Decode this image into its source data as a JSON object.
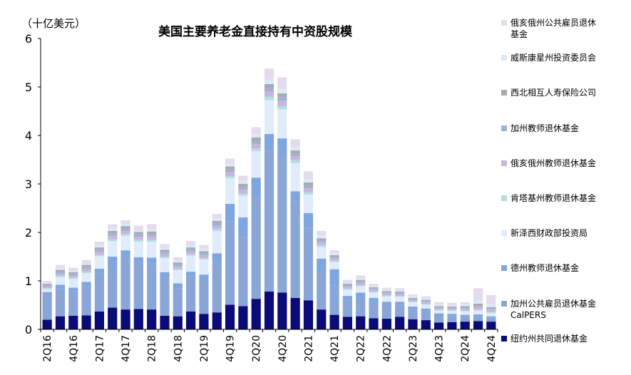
{
  "unit_label": "（十亿美元）",
  "chart_data": {
    "type": "bar",
    "stacked": true,
    "title": "美国主要养老金直接持有中资股规模",
    "ylabel": "（十亿美元）",
    "ylim": [
      0,
      6
    ],
    "yticks": [
      0,
      1,
      2,
      3,
      4,
      5,
      6
    ],
    "grid": false,
    "legend_position": "right",
    "categories": [
      "2Q16",
      "3Q16",
      "4Q16",
      "1Q17",
      "2Q17",
      "3Q17",
      "4Q17",
      "1Q18",
      "2Q18",
      "3Q18",
      "4Q18",
      "1Q19",
      "2Q19",
      "3Q19",
      "4Q19",
      "1Q20",
      "2Q20",
      "3Q20",
      "4Q20",
      "1Q21",
      "2Q21",
      "3Q21",
      "4Q21",
      "1Q22",
      "2Q22",
      "3Q22",
      "4Q22",
      "1Q23",
      "2Q23",
      "3Q23",
      "4Q23",
      "1Q24",
      "2Q24",
      "3Q24",
      "4Q24"
    ],
    "tick_labels": [
      "2Q16",
      "",
      "4Q16",
      "",
      "2Q17",
      "",
      "4Q17",
      "",
      "2Q18",
      "",
      "4Q18",
      "",
      "2Q19",
      "",
      "4Q19",
      "",
      "2Q20",
      "",
      "4Q20",
      "",
      "2Q21",
      "",
      "4Q21",
      "",
      "2Q22",
      "",
      "4Q22",
      "",
      "2Q23",
      "",
      "4Q23",
      "",
      "2Q24",
      "",
      "4Q24"
    ],
    "series": [
      {
        "name": "纽约州共同退休基金",
        "color": "#0a0a78",
        "values": [
          0.2,
          0.27,
          0.28,
          0.29,
          0.37,
          0.45,
          0.41,
          0.42,
          0.41,
          0.28,
          0.27,
          0.37,
          0.32,
          0.35,
          0.51,
          0.48,
          0.63,
          0.78,
          0.76,
          0.65,
          0.6,
          0.41,
          0.3,
          0.26,
          0.27,
          0.23,
          0.22,
          0.26,
          0.21,
          0.19,
          0.14,
          0.15,
          0.16,
          0.17,
          0.16
        ]
      },
      {
        "name": "加州公共雇员退休基金\nCalPERS",
        "color": "#8aa6d6",
        "values": [
          0.52,
          0.57,
          0.51,
          0.62,
          0.78,
          0.85,
          1.12,
          0.97,
          0.97,
          0.78,
          0.58,
          0.72,
          0.71,
          1.07,
          1.72,
          1.43,
          2.1,
          2.9,
          2.8,
          2.0,
          1.5,
          0.78,
          0.6,
          0.33,
          0.37,
          0.33,
          0.28,
          0.25,
          0.2,
          0.18,
          0.14,
          0.12,
          0.1,
          0.1,
          0.08
        ]
      },
      {
        "name": "德州教师退休基金",
        "color": "#7fa6de",
        "values": [
          0.05,
          0.08,
          0.07,
          0.07,
          0.1,
          0.2,
          0.1,
          0.1,
          0.1,
          0.12,
          0.1,
          0.1,
          0.1,
          0.15,
          0.36,
          0.4,
          0.4,
          0.35,
          0.38,
          0.2,
          0.3,
          0.27,
          0.34,
          0.1,
          0.12,
          0.09,
          0.07,
          0.06,
          0.06,
          0.06,
          0.05,
          0.05,
          0.04,
          0.04,
          0.03
        ]
      },
      {
        "name": "新泽西财政部投资局",
        "color": "#e0ecfa",
        "values": [
          0.06,
          0.16,
          0.18,
          0.18,
          0.26,
          0.32,
          0.3,
          0.32,
          0.33,
          0.29,
          0.27,
          0.33,
          0.31,
          0.46,
          0.53,
          0.45,
          0.55,
          0.7,
          0.6,
          0.58,
          0.38,
          0.24,
          0.15,
          0.13,
          0.13,
          0.11,
          0.11,
          0.1,
          0.09,
          0.08,
          0.06,
          0.06,
          0.07,
          0.08,
          0.07
        ]
      },
      {
        "name": "肯塔基州教师退休基金",
        "color": "#b4dbe6",
        "values": [
          0.02,
          0.03,
          0.03,
          0.03,
          0.03,
          0.04,
          0.04,
          0.04,
          0.04,
          0.03,
          0.03,
          0.03,
          0.03,
          0.04,
          0.04,
          0.04,
          0.05,
          0.07,
          0.07,
          0.06,
          0.05,
          0.04,
          0.03,
          0.02,
          0.02,
          0.02,
          0.02,
          0.02,
          0.02,
          0.02,
          0.02,
          0.02,
          0.02,
          0.02,
          0.02
        ]
      },
      {
        "name": "俄亥俄州教师退休基金",
        "color": "#c9b5d9",
        "values": [
          0.03,
          0.04,
          0.04,
          0.05,
          0.06,
          0.07,
          0.06,
          0.06,
          0.07,
          0.06,
          0.05,
          0.06,
          0.06,
          0.07,
          0.08,
          0.08,
          0.09,
          0.1,
          0.1,
          0.08,
          0.08,
          0.06,
          0.05,
          0.04,
          0.05,
          0.04,
          0.04,
          0.04,
          0.03,
          0.04,
          0.03,
          0.03,
          0.04,
          0.06,
          0.05
        ]
      },
      {
        "name": "加州教师退休基金",
        "color": "#9db2d8",
        "values": [
          0.03,
          0.04,
          0.04,
          0.05,
          0.05,
          0.05,
          0.05,
          0.05,
          0.05,
          0.04,
          0.04,
          0.04,
          0.04,
          0.05,
          0.06,
          0.06,
          0.07,
          0.08,
          0.08,
          0.06,
          0.06,
          0.04,
          0.03,
          0.03,
          0.03,
          0.03,
          0.03,
          0.03,
          0.02,
          0.02,
          0.02,
          0.02,
          0.02,
          0.02,
          0.02
        ]
      },
      {
        "name": "西北相互人寿保险公司",
        "color": "#aaaaaa",
        "values": [
          0.03,
          0.04,
          0.03,
          0.04,
          0.04,
          0.05,
          0.05,
          0.05,
          0.05,
          0.04,
          0.04,
          0.04,
          0.04,
          0.05,
          0.06,
          0.06,
          0.07,
          0.08,
          0.08,
          0.06,
          0.06,
          0.04,
          0.03,
          0.03,
          0.03,
          0.02,
          0.02,
          0.02,
          0.02,
          0.02,
          0.02,
          0.02,
          0.03,
          0.04,
          0.03
        ]
      },
      {
        "name": "威斯康星州投资委员会",
        "color": "#daeaf8",
        "values": [
          0.02,
          0.03,
          0.03,
          0.03,
          0.04,
          0.04,
          0.04,
          0.04,
          0.05,
          0.04,
          0.04,
          0.05,
          0.05,
          0.05,
          0.06,
          0.07,
          0.07,
          0.09,
          0.09,
          0.07,
          0.07,
          0.05,
          0.04,
          0.03,
          0.03,
          0.03,
          0.03,
          0.03,
          0.03,
          0.03,
          0.03,
          0.03,
          0.04,
          0.06,
          0.05
        ]
      },
      {
        "name": "俄亥俄州公共雇员退休\n基金",
        "color": "#e4dcee",
        "values": [
          0.04,
          0.07,
          0.06,
          0.07,
          0.08,
          0.1,
          0.08,
          0.09,
          0.1,
          0.08,
          0.07,
          0.08,
          0.08,
          0.09,
          0.1,
          0.1,
          0.14,
          0.23,
          0.24,
          0.16,
          0.16,
          0.1,
          0.06,
          0.05,
          0.06,
          0.04,
          0.04,
          0.04,
          0.04,
          0.04,
          0.05,
          0.05,
          0.04,
          0.26,
          0.2
        ]
      }
    ]
  }
}
